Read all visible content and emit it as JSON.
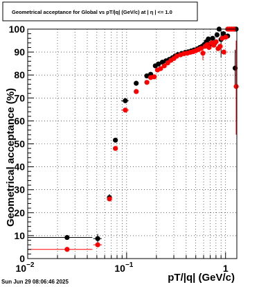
{
  "chart_data": {
    "type": "scatter",
    "title": "Geometrical acceptance for Global vs pT/|q| (GeV/c) at |  η  | <= 1.0",
    "xlabel": "pT/|q| (GeV/c)",
    "ylabel": "Geometrical acceptance (%)",
    "x_scale": "log",
    "xlim": [
      0.01,
      1.3
    ],
    "ylim": [
      0,
      100
    ],
    "grid": true,
    "x_tick_labels": [
      {
        "value": 0.01,
        "base": "10",
        "exp": "−2"
      },
      {
        "value": 0.1,
        "base": "10",
        "exp": "−1"
      },
      {
        "value": 1,
        "base": "1",
        "exp": ""
      }
    ],
    "y_ticks": [
      0,
      10,
      20,
      30,
      40,
      50,
      60,
      70,
      80,
      90,
      100
    ],
    "series": [
      {
        "color": "#000000",
        "points": [
          {
            "x": 0.025,
            "y": 9.2,
            "xlo": 0.01,
            "xhi": 0.045
          },
          {
            "x": 0.051,
            "y": 8.7,
            "xlo": 0.046,
            "xhi": 0.056,
            "ylo": 2,
            "yhi": 2
          },
          {
            "x": 0.067,
            "y": 26.6,
            "xlo": 0.064,
            "xhi": 0.07,
            "ylo": 1.5,
            "yhi": 1.5
          },
          {
            "x": 0.077,
            "y": 51.6,
            "xlo": 0.075,
            "xhi": 0.08
          },
          {
            "x": 0.097,
            "y": 68.8,
            "xlo": 0.088,
            "xhi": 0.105
          },
          {
            "x": 0.125,
            "y": 76.4,
            "xlo": 0.12,
            "xhi": 0.13
          },
          {
            "x": 0.16,
            "y": 79.6
          },
          {
            "x": 0.175,
            "y": 80.3
          },
          {
            "x": 0.195,
            "y": 84.0
          },
          {
            "x": 0.21,
            "y": 84.8
          },
          {
            "x": 0.23,
            "y": 85.6
          },
          {
            "x": 0.25,
            "y": 86.2
          },
          {
            "x": 0.27,
            "y": 86.8
          },
          {
            "x": 0.29,
            "y": 87.5
          },
          {
            "x": 0.31,
            "y": 88.3
          },
          {
            "x": 0.33,
            "y": 88.9
          },
          {
            "x": 0.36,
            "y": 89.4
          },
          {
            "x": 0.39,
            "y": 89.8
          },
          {
            "x": 0.42,
            "y": 90.1
          },
          {
            "x": 0.45,
            "y": 90.5
          },
          {
            "x": 0.48,
            "y": 90.9
          },
          {
            "x": 0.52,
            "y": 91.4
          },
          {
            "x": 0.55,
            "y": 92.0
          },
          {
            "x": 0.58,
            "y": 92.5
          },
          {
            "x": 0.61,
            "y": 93.3
          },
          {
            "x": 0.64,
            "y": 94.5
          },
          {
            "x": 0.67,
            "y": 95.7
          },
          {
            "x": 0.7,
            "y": 93.5
          },
          {
            "x": 0.74,
            "y": 96.0
          },
          {
            "x": 0.78,
            "y": 94.0
          },
          {
            "x": 0.82,
            "y": 97.5
          },
          {
            "x": 0.86,
            "y": 100.0
          },
          {
            "x": 0.9,
            "y": 95.5,
            "ylo": 8,
            "yhi": 4
          },
          {
            "x": 0.95,
            "y": 98.0
          },
          {
            "x": 1.0,
            "y": 96.5
          },
          {
            "x": 1.05,
            "y": 97.0
          },
          {
            "x": 1.1,
            "y": 100.0
          },
          {
            "x": 1.15,
            "y": 100.0
          },
          {
            "x": 1.22,
            "y": 100.0
          },
          {
            "x": 1.25,
            "y": 83.0,
            "ylo": 8,
            "yhi": 8
          },
          {
            "x": 1.28,
            "y": 100.0
          }
        ]
      },
      {
        "color": "#ff0000",
        "points": [
          {
            "x": 0.025,
            "y": 4.0,
            "xlo": 0.01,
            "xhi": 0.045
          },
          {
            "x": 0.051,
            "y": 6.0,
            "xlo": 0.046,
            "xhi": 0.056
          },
          {
            "x": 0.067,
            "y": 26.0,
            "xlo": 0.064,
            "xhi": 0.07
          },
          {
            "x": 0.077,
            "y": 48.0
          },
          {
            "x": 0.097,
            "y": 64.7,
            "xlo": 0.088,
            "xhi": 0.105
          },
          {
            "x": 0.125,
            "y": 72.8,
            "xlo": 0.12,
            "xhi": 0.13
          },
          {
            "x": 0.16,
            "y": 76.8
          },
          {
            "x": 0.175,
            "y": 78.9
          },
          {
            "x": 0.19,
            "y": 79.2
          },
          {
            "x": 0.205,
            "y": 82.2
          },
          {
            "x": 0.22,
            "y": 82.8
          },
          {
            "x": 0.24,
            "y": 84.0
          },
          {
            "x": 0.26,
            "y": 85.3
          },
          {
            "x": 0.28,
            "y": 86.4
          },
          {
            "x": 0.3,
            "y": 87.2
          },
          {
            "x": 0.32,
            "y": 88.2
          },
          {
            "x": 0.35,
            "y": 88.8
          },
          {
            "x": 0.38,
            "y": 89.3
          },
          {
            "x": 0.41,
            "y": 89.5
          },
          {
            "x": 0.44,
            "y": 89.9
          },
          {
            "x": 0.47,
            "y": 90.2
          },
          {
            "x": 0.5,
            "y": 90.6
          },
          {
            "x": 0.53,
            "y": 91.1
          },
          {
            "x": 0.56,
            "y": 91.6
          },
          {
            "x": 0.59,
            "y": 89.5,
            "ylo": 3,
            "yhi": 3
          },
          {
            "x": 0.62,
            "y": 92.5
          },
          {
            "x": 0.65,
            "y": 93.2
          },
          {
            "x": 0.68,
            "y": 92.0
          },
          {
            "x": 0.72,
            "y": 94.0
          },
          {
            "x": 0.76,
            "y": 93.0
          },
          {
            "x": 0.8,
            "y": 94.5
          },
          {
            "x": 0.84,
            "y": 91.5
          },
          {
            "x": 0.88,
            "y": 92.5
          },
          {
            "x": 0.92,
            "y": 96.0
          },
          {
            "x": 0.96,
            "y": 90.0
          },
          {
            "x": 1.0,
            "y": 96.5
          },
          {
            "x": 1.05,
            "y": 100.0
          },
          {
            "x": 1.1,
            "y": 100.0
          },
          {
            "x": 1.15,
            "y": 100.0
          },
          {
            "x": 1.2,
            "y": 100.0
          },
          {
            "x": 1.28,
            "y": 75.0,
            "ylo": 21,
            "yhi": 20
          }
        ]
      }
    ]
  },
  "footer": {
    "timestamp": "Sun Jun 29 08:06:46 2025"
  }
}
